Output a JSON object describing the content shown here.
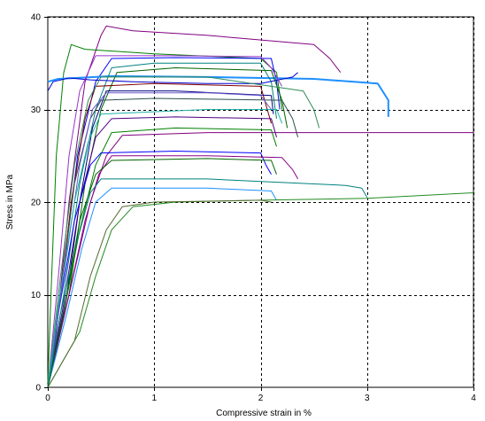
{
  "chart_data": {
    "type": "line",
    "title": "",
    "xlabel": "Compressive strain in %",
    "ylabel": "Stress in MPa",
    "xlim": [
      0,
      4
    ],
    "ylim": [
      0,
      40
    ],
    "xticks": [
      0,
      1,
      2,
      3,
      4
    ],
    "yticks": [
      0,
      10,
      20,
      30,
      40
    ],
    "grid": true,
    "grid_style": "dashed",
    "series": [
      {
        "color": "#800080",
        "points": [
          [
            0,
            0
          ],
          [
            0.08,
            6
          ],
          [
            0.2,
            20
          ],
          [
            0.35,
            33
          ],
          [
            0.5,
            38
          ],
          [
            0.55,
            39
          ],
          [
            0.8,
            38.5
          ],
          [
            1.5,
            38
          ],
          [
            2.5,
            37
          ],
          [
            2.65,
            35.5
          ],
          [
            2.75,
            34
          ]
        ]
      },
      {
        "color": "#008000",
        "points": [
          [
            0,
            0.5
          ],
          [
            0.03,
            10
          ],
          [
            0.08,
            25
          ],
          [
            0.15,
            34
          ],
          [
            0.22,
            37
          ],
          [
            0.35,
            36.5
          ],
          [
            1,
            36
          ],
          [
            2,
            35.5
          ],
          [
            2.15,
            34
          ],
          [
            2.2,
            30
          ]
        ]
      },
      {
        "color": "#0000ff",
        "points": [
          [
            0,
            0
          ],
          [
            0.12,
            10
          ],
          [
            0.28,
            25
          ],
          [
            0.45,
            33
          ],
          [
            0.6,
            35.5
          ],
          [
            1.2,
            35.6
          ],
          [
            2.1,
            35.5
          ],
          [
            2.15,
            33
          ],
          [
            2.18,
            30
          ]
        ]
      },
      {
        "color": "#1e90ff",
        "points": [
          [
            0,
            33
          ],
          [
            0.1,
            33.3
          ],
          [
            0.6,
            33.6
          ],
          [
            1.5,
            33.5
          ],
          [
            2.5,
            33.3
          ],
          [
            3.1,
            32.8
          ],
          [
            3.2,
            31
          ],
          [
            3.2,
            29.2
          ]
        ]
      },
      {
        "color": "#008080",
        "points": [
          [
            0,
            0
          ],
          [
            0.15,
            10
          ],
          [
            0.3,
            22
          ],
          [
            0.45,
            30
          ],
          [
            0.6,
            34.5
          ],
          [
            1,
            35
          ],
          [
            2,
            35
          ],
          [
            2.1,
            33
          ],
          [
            2.15,
            29
          ]
        ]
      },
      {
        "color": "#006400",
        "points": [
          [
            0,
            0
          ],
          [
            0.2,
            10
          ],
          [
            0.35,
            22
          ],
          [
            0.5,
            30
          ],
          [
            0.65,
            34
          ],
          [
            1.2,
            34.5
          ],
          [
            2.1,
            34.2
          ],
          [
            2.2,
            31
          ],
          [
            2.25,
            28
          ]
        ]
      },
      {
        "color": "#800000",
        "points": [
          [
            0,
            0
          ],
          [
            0.1,
            8
          ],
          [
            0.22,
            20
          ],
          [
            0.35,
            29
          ],
          [
            0.45,
            32.5
          ],
          [
            1,
            32.8
          ],
          [
            2,
            32.5
          ],
          [
            2.05,
            30.5
          ],
          [
            2.1,
            28.5
          ]
        ]
      },
      {
        "color": "#000080",
        "points": [
          [
            0,
            0
          ],
          [
            0.18,
            10
          ],
          [
            0.3,
            20
          ],
          [
            0.42,
            28
          ],
          [
            0.55,
            32
          ],
          [
            1.2,
            32
          ],
          [
            2.1,
            31.5
          ],
          [
            2.12,
            29.5
          ]
        ]
      },
      {
        "color": "#2f4f4f",
        "points": [
          [
            0,
            0
          ],
          [
            0.12,
            10
          ],
          [
            0.25,
            22
          ],
          [
            0.4,
            29
          ],
          [
            0.5,
            31
          ],
          [
            1,
            31.2
          ],
          [
            2.2,
            31
          ],
          [
            2.3,
            29
          ],
          [
            2.35,
            27
          ]
        ]
      },
      {
        "color": "#4b0082",
        "points": [
          [
            0,
            0
          ],
          [
            0.15,
            9
          ],
          [
            0.3,
            20
          ],
          [
            0.45,
            27
          ],
          [
            0.6,
            29
          ],
          [
            1.2,
            29.2
          ],
          [
            2.1,
            29
          ],
          [
            2.15,
            27
          ]
        ]
      },
      {
        "color": "#800080",
        "points": [
          [
            0,
            0
          ],
          [
            0.2,
            10
          ],
          [
            0.4,
            20
          ],
          [
            0.55,
            25
          ],
          [
            0.7,
            27.2
          ],
          [
            1.5,
            27.5
          ],
          [
            2.5,
            27.5
          ],
          [
            4,
            27.5
          ]
        ]
      },
      {
        "color": "#008000",
        "points": [
          [
            0,
            0
          ],
          [
            0.15,
            8
          ],
          [
            0.3,
            17
          ],
          [
            0.45,
            24
          ],
          [
            0.6,
            27.5
          ],
          [
            1.2,
            28
          ],
          [
            2.1,
            27.8
          ],
          [
            2.15,
            26
          ]
        ]
      },
      {
        "color": "#0000ff",
        "points": [
          [
            0,
            0
          ],
          [
            0.1,
            8
          ],
          [
            0.25,
            18
          ],
          [
            0.4,
            24
          ],
          [
            0.5,
            25.3
          ],
          [
            1.2,
            25.5
          ],
          [
            2,
            25.3
          ],
          [
            2.05,
            24
          ],
          [
            2.1,
            23
          ]
        ]
      },
      {
        "color": "#8b008b",
        "points": [
          [
            0,
            0
          ],
          [
            0.2,
            10
          ],
          [
            0.35,
            18
          ],
          [
            0.48,
            23
          ],
          [
            0.6,
            25
          ],
          [
            1.5,
            25
          ],
          [
            2.2,
            24.8
          ],
          [
            2.3,
            23.5
          ],
          [
            2.35,
            22.5
          ]
        ]
      },
      {
        "color": "#008080",
        "points": [
          [
            0,
            0
          ],
          [
            0.12,
            8
          ],
          [
            0.28,
            16
          ],
          [
            0.4,
            21
          ],
          [
            0.5,
            22.5
          ],
          [
            1.5,
            22.5
          ],
          [
            2.8,
            21.8
          ],
          [
            2.95,
            21.5
          ],
          [
            3,
            20.5
          ]
        ]
      },
      {
        "color": "#1e90ff",
        "points": [
          [
            0,
            0
          ],
          [
            0.18,
            8
          ],
          [
            0.32,
            15
          ],
          [
            0.45,
            20
          ],
          [
            0.6,
            21.5
          ],
          [
            1.5,
            21.5
          ],
          [
            2.1,
            21.2
          ],
          [
            2.15,
            20.2
          ]
        ]
      },
      {
        "color": "#228b22",
        "points": [
          [
            0,
            0
          ],
          [
            0.3,
            6
          ],
          [
            0.45,
            12
          ],
          [
            0.6,
            17
          ],
          [
            0.8,
            19.5
          ],
          [
            1.2,
            20
          ],
          [
            2,
            20.2
          ],
          [
            3,
            20.4
          ],
          [
            4,
            21
          ]
        ]
      },
      {
        "color": "#556b2f",
        "points": [
          [
            0,
            0
          ],
          [
            0.25,
            5
          ],
          [
            0.4,
            12
          ],
          [
            0.55,
            17
          ],
          [
            0.7,
            19.5
          ],
          [
            1,
            20
          ],
          [
            2,
            20.2
          ],
          [
            2.1,
            20
          ]
        ]
      },
      {
        "color": "#0000cd",
        "points": [
          [
            0,
            32
          ],
          [
            0.05,
            33
          ],
          [
            0.2,
            33.4
          ],
          [
            0.4,
            33.2
          ],
          [
            0.8,
            33
          ],
          [
            1.5,
            32.8
          ],
          [
            2,
            32.8
          ],
          [
            2.3,
            33.5
          ],
          [
            2.35,
            34
          ]
        ]
      },
      {
        "color": "#9932cc",
        "points": [
          [
            0,
            0
          ],
          [
            0.1,
            12
          ],
          [
            0.2,
            25
          ],
          [
            0.3,
            32
          ],
          [
            0.45,
            35.8
          ],
          [
            1.2,
            35.8
          ],
          [
            2,
            35.7
          ],
          [
            2.1,
            34.5
          ],
          [
            2.2,
            32.5
          ]
        ]
      },
      {
        "color": "#2e8b57",
        "points": [
          [
            0,
            0
          ],
          [
            0.12,
            12
          ],
          [
            0.25,
            24
          ],
          [
            0.38,
            31
          ],
          [
            0.5,
            33.5
          ],
          [
            1.5,
            33.5
          ],
          [
            2.4,
            32
          ],
          [
            2.5,
            30
          ],
          [
            2.55,
            28
          ]
        ]
      },
      {
        "color": "#6a5acd",
        "points": [
          [
            0,
            0
          ],
          [
            0.15,
            12
          ],
          [
            0.3,
            24
          ],
          [
            0.42,
            30
          ],
          [
            0.55,
            31.8
          ],
          [
            1.5,
            31.8
          ],
          [
            2,
            31.5
          ],
          [
            2.1,
            30
          ]
        ]
      },
      {
        "color": "#20b2aa",
        "points": [
          [
            0,
            0
          ],
          [
            0.1,
            9
          ],
          [
            0.25,
            20
          ],
          [
            0.38,
            26.5
          ],
          [
            0.5,
            29.5
          ],
          [
            1.5,
            30
          ],
          [
            2.15,
            30
          ],
          [
            2.2,
            28.5
          ]
        ]
      },
      {
        "color": "#006400",
        "points": [
          [
            0,
            0
          ],
          [
            0.15,
            8
          ],
          [
            0.3,
            18
          ],
          [
            0.45,
            23
          ],
          [
            0.6,
            24.5
          ],
          [
            1.5,
            24.7
          ],
          [
            2.1,
            24.5
          ],
          [
            2.15,
            23
          ]
        ]
      }
    ]
  }
}
